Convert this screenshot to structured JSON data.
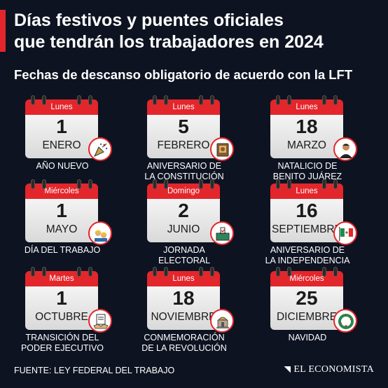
{
  "header": {
    "title_line1": "Días festivos y puentes oficiales",
    "title_line2": "que tendrán los trabajadores en 2024",
    "subtitle": "Fechas de descanso obligatorio de acuerdo con la LFT"
  },
  "holidays": [
    {
      "weekday": "Lunes",
      "day": "1",
      "month": "ENERO",
      "caption_line1": "AÑO NUEVO",
      "caption_line2": "",
      "icon": "party-popper-icon"
    },
    {
      "weekday": "Lunes",
      "day": "5",
      "month": "FEBRERO",
      "caption_line1": "ANIVERSARIO DE",
      "caption_line2": "LA CONSTITUCIÓN",
      "icon": "constitution-book-icon"
    },
    {
      "weekday": "Lunes",
      "day": "18",
      "month": "MARZO",
      "caption_line1": "NATALICIO DE",
      "caption_line2": "BENITO JUÁREZ",
      "icon": "benito-juarez-portrait-icon"
    },
    {
      "weekday": "Miércoles",
      "day": "1",
      "month": "MAYO",
      "caption_line1": "DÍA DEL TRABAJO",
      "caption_line2": "",
      "icon": "workers-helmet-icon"
    },
    {
      "weekday": "Domingo",
      "day": "2",
      "month": "JUNIO",
      "caption_line1": "JORNADA",
      "caption_line2": "ELECTORAL",
      "icon": "ballot-box-icon"
    },
    {
      "weekday": "Lunes",
      "day": "16",
      "month": "SEPTIEMBRE",
      "caption_line1": "ANIVERSARIO DE",
      "caption_line2": "LA INDEPENDENCIA",
      "icon": "mexican-flag-icon"
    },
    {
      "weekday": "Martes",
      "day": "1",
      "month": "OCTUBRE",
      "caption_line1": "TRANSICIÓN DEL",
      "caption_line2": "PODER EJECUTIVO",
      "icon": "handshake-document-icon"
    },
    {
      "weekday": "Lunes",
      "day": "18",
      "month": "NOVIEMBRE",
      "caption_line1": "CONMEMORACIÓN",
      "caption_line2": "DE LA REVOLUCIÓN",
      "icon": "revolution-monument-icon"
    },
    {
      "weekday": "Miércoles",
      "day": "25",
      "month": "DICIEMBRE",
      "caption_line1": "NAVIDAD",
      "caption_line2": "",
      "icon": "christmas-wreath-icon"
    }
  ],
  "footer": {
    "source": "FUENTE: LEY FEDERAL DEL TRABAJO",
    "brand": "EL ECONOMISTA"
  },
  "colors": {
    "background": "#0d1321",
    "accent": "#e3262b",
    "calendar_body": "#e6e6e6"
  }
}
